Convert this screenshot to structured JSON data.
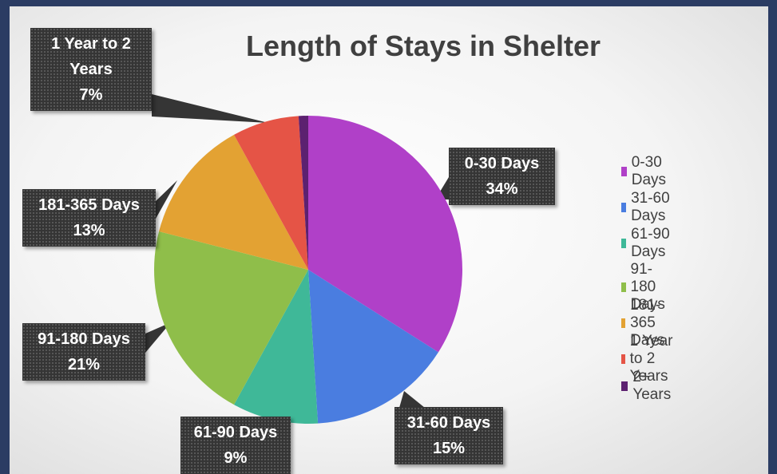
{
  "chart_data": {
    "type": "pie",
    "title": "Length of Stays in Shelter",
    "categories": [
      "0-30 Days",
      "31-60 Days",
      "61-90 Days",
      "91-180 Days",
      "181-365 Days",
      "1 Year to 2 Years",
      "2+ Years"
    ],
    "values": [
      34,
      15,
      9,
      21,
      13,
      7,
      1
    ],
    "value_labels": [
      "34%",
      "15%",
      "9%",
      "21%",
      "13%",
      "7%",
      null
    ],
    "colors": [
      "#b040c8",
      "#4a7de0",
      "#3fb898",
      "#8fbe4a",
      "#e3a233",
      "#e55446",
      "#5c2170"
    ],
    "legend": "right"
  }
}
